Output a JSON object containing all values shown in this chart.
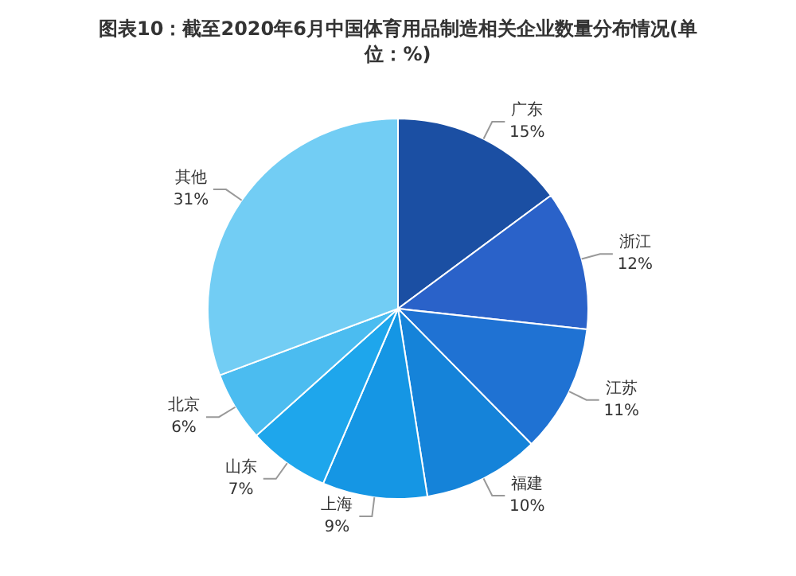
{
  "chart_data": {
    "type": "pie",
    "title": "图表10：截至2020年6月中国体育用品制造相关企业数量分布情况(单位：%)",
    "categories": [
      "广东",
      "浙江",
      "江苏",
      "福建",
      "上海",
      "山东",
      "北京",
      "其他"
    ],
    "values": [
      15,
      12,
      11,
      10,
      9,
      7,
      6,
      31
    ],
    "colors": [
      "#1b4fa3",
      "#2a62c9",
      "#1f72d3",
      "#1583d9",
      "#1596e4",
      "#1ea6ec",
      "#4bbcf0",
      "#72cdf4"
    ],
    "value_labels": [
      "15%",
      "12%",
      "11%",
      "10%",
      "9%",
      "7%",
      "6%",
      "31%"
    ],
    "legend": false
  }
}
